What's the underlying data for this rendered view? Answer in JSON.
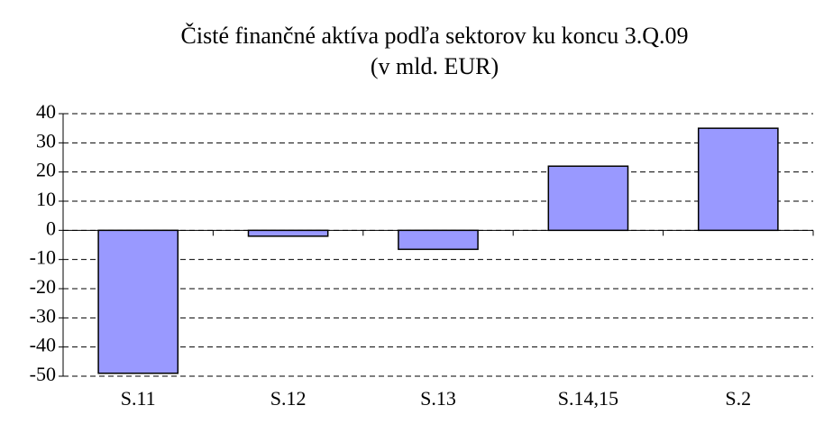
{
  "chart_data": {
    "type": "bar",
    "title": "Čisté finančné aktíva podľa sektorov ku koncu 3.Q.09",
    "subtitle": "(v mld. EUR)",
    "categories": [
      "S.11",
      "S.12",
      "S.13",
      "S.14,15",
      "S.2"
    ],
    "values": [
      -49,
      -2,
      -6.5,
      22,
      35
    ],
    "color": "#9999ff",
    "ylim": [
      -50,
      40
    ],
    "yticks": [
      -50,
      -40,
      -30,
      -20,
      -10,
      0,
      10,
      20,
      30,
      40
    ],
    "grid": true
  }
}
